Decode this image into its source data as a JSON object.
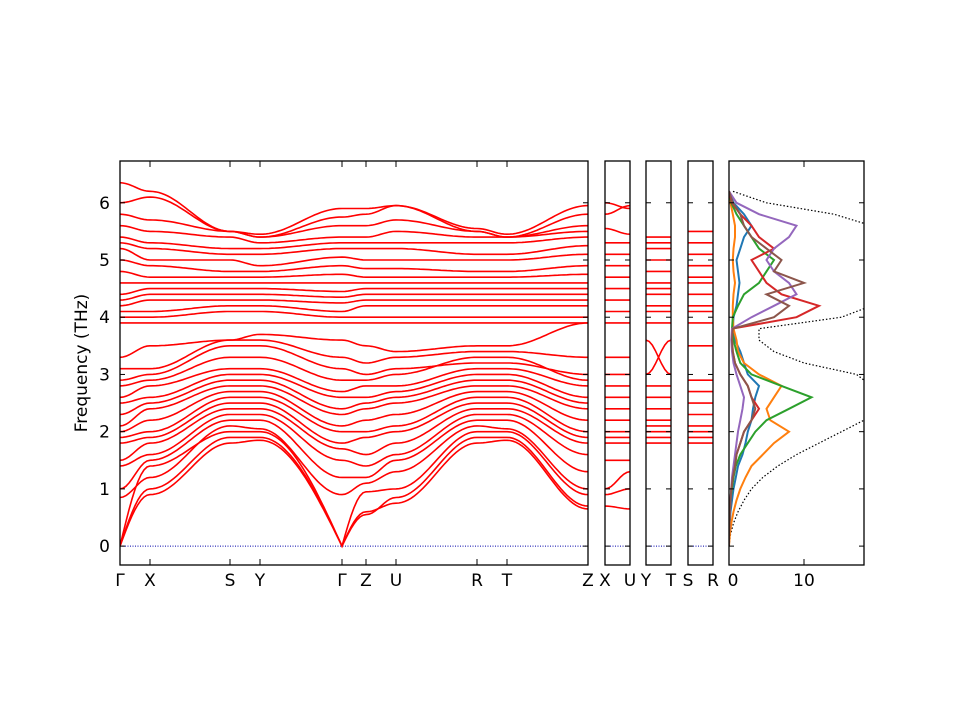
{
  "chart_data": {
    "type": "line",
    "ylabel": "Frequency (THz)",
    "ylim": [
      -0.33,
      6.73
    ],
    "yticks": [
      "0",
      "1",
      "2",
      "3",
      "4",
      "5",
      "6"
    ],
    "band_color": "#ff0000",
    "zero_line_color": "#0000aa",
    "panels": [
      {
        "labels": [
          "Γ",
          "X",
          "S",
          "Y",
          "Γ",
          "Z",
          "U",
          "R",
          "T",
          "Z"
        ],
        "bands": [
          [
            0,
            0.9,
            1.8,
            1.85,
            0,
            0.6,
            0.75,
            1.8,
            1.85,
            0.65
          ],
          [
            0,
            1.0,
            1.9,
            1.9,
            0,
            0.55,
            0.85,
            1.9,
            1.9,
            0.7
          ],
          [
            0,
            1.4,
            2.0,
            2.0,
            0,
            0.95,
            1.0,
            2.0,
            2.0,
            0.9
          ],
          [
            0.85,
            1.2,
            2.1,
            2.05,
            0.9,
            1.1,
            1.3,
            2.1,
            2.05,
            1.0
          ],
          [
            1.0,
            1.5,
            2.2,
            2.2,
            1.2,
            1.2,
            1.5,
            2.2,
            2.2,
            1.3
          ],
          [
            1.4,
            1.6,
            2.3,
            2.3,
            1.5,
            1.4,
            1.6,
            2.3,
            2.3,
            1.6
          ],
          [
            1.5,
            1.8,
            2.4,
            2.4,
            1.7,
            1.6,
            1.8,
            2.4,
            2.4,
            1.8
          ],
          [
            1.8,
            1.9,
            2.5,
            2.5,
            1.8,
            1.9,
            2.0,
            2.5,
            2.5,
            1.9
          ],
          [
            1.9,
            2.0,
            2.6,
            2.6,
            2.0,
            2.0,
            2.1,
            2.6,
            2.6,
            2.0
          ],
          [
            2.0,
            2.2,
            2.7,
            2.7,
            2.1,
            2.2,
            2.3,
            2.7,
            2.7,
            2.2
          ],
          [
            2.1,
            2.4,
            2.8,
            2.8,
            2.3,
            2.4,
            2.5,
            2.8,
            2.8,
            2.4
          ],
          [
            2.3,
            2.5,
            2.9,
            2.9,
            2.4,
            2.5,
            2.6,
            2.9,
            2.9,
            2.5
          ],
          [
            2.5,
            2.6,
            3.0,
            3.0,
            2.6,
            2.6,
            2.7,
            3.0,
            3.0,
            2.6
          ],
          [
            2.6,
            2.8,
            3.1,
            3.1,
            2.7,
            2.8,
            2.8,
            3.1,
            3.1,
            2.8
          ],
          [
            2.8,
            2.9,
            3.3,
            3.3,
            2.9,
            2.9,
            3.0,
            3.3,
            3.3,
            2.9
          ],
          [
            2.9,
            3.0,
            3.5,
            3.5,
            3.1,
            3.0,
            3.1,
            3.2,
            3.2,
            3.0
          ],
          [
            3.1,
            3.1,
            3.6,
            3.6,
            3.3,
            3.2,
            3.3,
            3.4,
            3.4,
            3.3
          ],
          [
            3.3,
            3.5,
            3.6,
            3.7,
            3.6,
            3.5,
            3.4,
            3.5,
            3.5,
            3.9
          ],
          [
            3.9,
            3.9,
            3.9,
            3.9,
            3.9,
            3.9,
            3.9,
            3.9,
            3.9,
            3.9
          ],
          [
            4.0,
            4.0,
            4.1,
            4.1,
            4.0,
            4.0,
            4.0,
            4.0,
            4.0,
            4.0
          ],
          [
            4.1,
            4.1,
            4.2,
            4.2,
            4.1,
            4.2,
            4.2,
            4.2,
            4.2,
            4.2
          ],
          [
            4.2,
            4.3,
            4.3,
            4.3,
            4.25,
            4.3,
            4.3,
            4.3,
            4.3,
            4.3
          ],
          [
            4.3,
            4.4,
            4.4,
            4.4,
            4.35,
            4.4,
            4.4,
            4.4,
            4.4,
            4.4
          ],
          [
            4.4,
            4.5,
            4.5,
            4.5,
            4.45,
            4.5,
            4.5,
            4.5,
            4.5,
            4.5
          ],
          [
            4.6,
            4.6,
            4.6,
            4.6,
            4.6,
            4.6,
            4.6,
            4.6,
            4.6,
            4.6
          ],
          [
            4.8,
            4.7,
            4.7,
            4.7,
            4.75,
            4.7,
            4.7,
            4.7,
            4.7,
            4.75
          ],
          [
            5.0,
            4.9,
            4.8,
            4.8,
            4.9,
            4.85,
            4.85,
            4.8,
            4.8,
            4.9
          ],
          [
            5.2,
            5.0,
            5.0,
            4.9,
            5.05,
            5.0,
            5.0,
            5.0,
            5.0,
            5.1
          ],
          [
            5.3,
            5.2,
            5.1,
            5.1,
            5.2,
            5.2,
            5.2,
            5.1,
            5.1,
            5.25
          ],
          [
            5.4,
            5.3,
            5.2,
            5.2,
            5.3,
            5.3,
            5.3,
            5.3,
            5.3,
            5.4
          ],
          [
            5.6,
            5.5,
            5.4,
            5.3,
            5.4,
            5.4,
            5.5,
            5.4,
            5.4,
            5.5
          ],
          [
            5.8,
            5.7,
            5.5,
            5.4,
            5.6,
            5.6,
            5.7,
            5.5,
            5.4,
            5.6
          ],
          [
            6.0,
            6.1,
            5.5,
            5.4,
            5.75,
            5.8,
            5.95,
            5.5,
            5.4,
            5.8
          ],
          [
            6.35,
            6.2,
            5.5,
            5.45,
            5.9,
            5.9,
            5.95,
            5.55,
            5.45,
            5.95
          ]
        ]
      },
      {
        "labels": [
          "X",
          "U"
        ],
        "bands": [
          [
            0.7,
            0.65
          ],
          [
            0.9,
            1.0
          ],
          [
            1.0,
            1.3
          ],
          [
            1.5,
            1.5
          ],
          [
            1.8,
            1.8
          ],
          [
            1.9,
            1.9
          ],
          [
            2.0,
            2.0
          ],
          [
            2.2,
            2.2
          ],
          [
            2.4,
            2.4
          ],
          [
            2.6,
            2.6
          ],
          [
            2.8,
            2.8
          ],
          [
            3.0,
            3.0
          ],
          [
            3.3,
            3.3
          ],
          [
            3.9,
            3.9
          ],
          [
            4.1,
            4.1
          ],
          [
            4.3,
            4.3
          ],
          [
            4.5,
            4.5
          ],
          [
            4.7,
            4.7
          ],
          [
            4.9,
            4.9
          ],
          [
            5.1,
            5.1
          ],
          [
            5.3,
            5.3
          ],
          [
            5.55,
            5.45
          ],
          [
            5.8,
            5.95
          ],
          [
            6.0,
            5.9
          ]
        ]
      },
      {
        "labels": [
          "Y",
          "T"
        ],
        "bands": [
          [
            1.8,
            1.8
          ],
          [
            1.9,
            1.9
          ],
          [
            2.0,
            2.0
          ],
          [
            2.1,
            2.1
          ],
          [
            2.2,
            2.2
          ],
          [
            2.4,
            2.4
          ],
          [
            2.6,
            2.6
          ],
          [
            2.8,
            2.8
          ],
          [
            3.0,
            3.6
          ],
          [
            3.6,
            3.0
          ],
          [
            3.9,
            3.9
          ],
          [
            4.1,
            4.1
          ],
          [
            4.2,
            4.2
          ],
          [
            4.4,
            4.4
          ],
          [
            4.5,
            4.5
          ],
          [
            4.6,
            4.6
          ],
          [
            4.8,
            4.8
          ],
          [
            5.0,
            5.0
          ],
          [
            5.2,
            5.2
          ],
          [
            5.3,
            5.3
          ],
          [
            5.4,
            5.4
          ]
        ]
      },
      {
        "labels": [
          "S",
          "R"
        ],
        "bands": [
          [
            1.8,
            1.8
          ],
          [
            1.9,
            1.9
          ],
          [
            2.0,
            2.0
          ],
          [
            2.1,
            2.1
          ],
          [
            2.3,
            2.3
          ],
          [
            2.5,
            2.5
          ],
          [
            2.7,
            2.7
          ],
          [
            2.9,
            2.9
          ],
          [
            3.5,
            3.5
          ],
          [
            3.9,
            3.9
          ],
          [
            4.1,
            4.1
          ],
          [
            4.2,
            4.2
          ],
          [
            4.4,
            4.4
          ],
          [
            4.6,
            4.6
          ],
          [
            4.7,
            4.7
          ],
          [
            4.9,
            4.9
          ],
          [
            5.1,
            5.1
          ],
          [
            5.3,
            5.3
          ],
          [
            5.5,
            5.5
          ]
        ]
      }
    ],
    "dos": {
      "xlim": [
        0,
        18
      ],
      "xticks": [
        "0",
        "10"
      ],
      "frequencies": [
        0,
        0.2,
        0.4,
        0.6,
        0.8,
        1.0,
        1.2,
        1.4,
        1.6,
        1.8,
        2.0,
        2.2,
        2.4,
        2.6,
        2.8,
        3.0,
        3.2,
        3.4,
        3.6,
        3.8,
        4.0,
        4.2,
        4.4,
        4.6,
        4.8,
        5.0,
        5.2,
        5.4,
        5.6,
        5.8,
        6.0,
        6.2
      ],
      "total": {
        "color": "#000000",
        "values": [
          0,
          0.2,
          0.6,
          1.2,
          2,
          3,
          4.5,
          6.5,
          9,
          12,
          15,
          18,
          20,
          22,
          24,
          17,
          10,
          6,
          4,
          4,
          15,
          22,
          25,
          22,
          19,
          24,
          28,
          24,
          20,
          14,
          5,
          0.5
        ]
      },
      "series": [
        {
          "color": "#1f77b4",
          "values": [
            0,
            0,
            0.1,
            0.2,
            0.4,
            0.6,
            0.9,
            1.2,
            1.8,
            2.2,
            2.5,
            3,
            3.2,
            3.5,
            4,
            2.5,
            2,
            1.5,
            0.8,
            0.5,
            0.6,
            1,
            1.2,
            1.4,
            1.2,
            1,
            1.5,
            2,
            3,
            2,
            0.6,
            0
          ]
        },
        {
          "color": "#ff7f0e",
          "values": [
            0,
            0.1,
            0.3,
            0.6,
            1,
            1.5,
            2.2,
            3,
            4.5,
            6,
            8,
            5.5,
            5,
            6,
            7,
            4,
            2,
            1.2,
            1,
            0.6,
            0.5,
            0.5,
            0.6,
            0.8,
            0.6,
            0.5,
            0.6,
            0.8,
            0.8,
            0.5,
            0.2,
            0
          ]
        },
        {
          "color": "#2ca02c",
          "values": [
            0,
            0,
            0.05,
            0.1,
            0.2,
            0.4,
            0.6,
            0.9,
            1.5,
            2.5,
            3.5,
            5,
            8,
            11,
            7,
            3,
            1.5,
            1,
            0.6,
            0.4,
            0.5,
            1.2,
            2,
            4,
            5,
            6,
            4,
            3,
            2,
            1,
            0.3,
            0
          ]
        },
        {
          "color": "#d62728",
          "values": [
            0,
            0,
            0.05,
            0.1,
            0.2,
            0.3,
            0.5,
            0.8,
            1,
            1.5,
            2,
            3,
            4,
            3,
            2.5,
            1.5,
            0.8,
            0.5,
            0.4,
            0.4,
            9,
            12,
            7,
            5,
            4,
            3,
            6,
            4,
            3,
            1.5,
            0.4,
            0
          ]
        },
        {
          "color": "#9467bd",
          "values": [
            0,
            0,
            0.05,
            0.1,
            0.2,
            0.3,
            0.4,
            0.6,
            0.8,
            1,
            1.2,
            1.5,
            1.8,
            2,
            1.5,
            1,
            0.6,
            0.4,
            0.3,
            0.4,
            3,
            6,
            9,
            8,
            6,
            5,
            6,
            8,
            9,
            4,
            1,
            0
          ]
        },
        {
          "color": "#8c564b",
          "values": [
            0,
            0,
            0.05,
            0.1,
            0.2,
            0.3,
            0.5,
            0.8,
            1,
            1.5,
            2,
            3,
            3.5,
            3,
            2.5,
            1.5,
            0.8,
            0.5,
            0.4,
            0.5,
            6,
            8,
            5,
            10,
            6,
            7,
            5,
            3,
            2,
            1.5,
            0.5,
            0
          ]
        }
      ]
    }
  }
}
